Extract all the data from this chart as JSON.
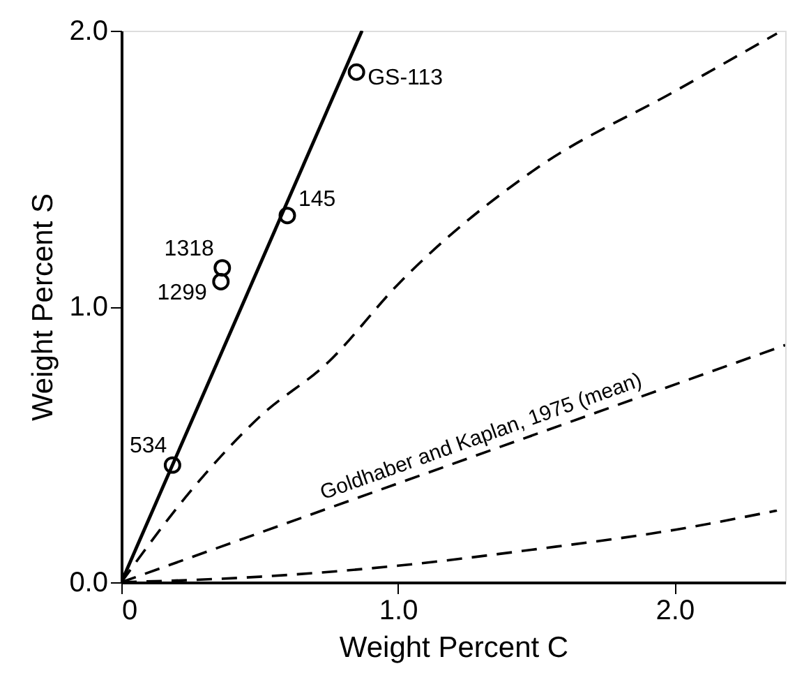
{
  "chart_data": {
    "type": "line",
    "xlabel": "Weight Percent C",
    "ylabel": "Weight Percent S",
    "xlim": [
      0,
      2.4
    ],
    "ylim": [
      0,
      2.0
    ],
    "xticks": [
      {
        "value": 0,
        "label": "0"
      },
      {
        "value": 1.0,
        "label": "1.0"
      },
      {
        "value": 2.0,
        "label": "2.0"
      }
    ],
    "yticks": [
      {
        "value": 0,
        "label": "0.0"
      },
      {
        "value": 1.0,
        "label": "1.0"
      },
      {
        "value": 2.0,
        "label": "2.0"
      }
    ],
    "grid": false,
    "legend": false,
    "series": [
      {
        "color": "#000000",
        "line_style": "solid",
        "x": [
          0,
          0.87
        ],
        "values": [
          0,
          2.0
        ]
      },
      {
        "color": "#000000",
        "line_style": "dashed",
        "x": [
          0,
          0.25,
          0.5,
          0.75,
          1.0,
          1.5,
          2.0,
          2.37
        ],
        "values": [
          0,
          0.33,
          0.6,
          0.8,
          1.08,
          1.5,
          1.78,
          1.99
        ]
      },
      {
        "name": "Goldhaber and Kaplan, 1975 (mean)",
        "color": "#000000",
        "line_style": "dashed",
        "x": [
          0,
          2.4
        ],
        "values": [
          0,
          0.86
        ]
      },
      {
        "color": "#000000",
        "line_style": "dashed",
        "x": [
          0,
          0.5,
          1.0,
          1.5,
          2.0,
          2.37
        ],
        "values": [
          0,
          0.02,
          0.06,
          0.12,
          0.19,
          0.26
        ]
      },
      {
        "type": "scatter",
        "color": "#000000",
        "marker": "circle",
        "x": [
          0.185,
          0.36,
          0.365,
          0.6,
          0.85
        ],
        "values": [
          0.425,
          1.09,
          1.14,
          1.33,
          1.85
        ]
      }
    ],
    "annotations": [
      {
        "text": "534",
        "x": 0.185,
        "y": 0.425
      },
      {
        "text": "1299",
        "x": 0.36,
        "y": 1.09
      },
      {
        "text": "1318",
        "x": 0.365,
        "y": 1.14
      },
      {
        "text": "145",
        "x": 0.6,
        "y": 1.33
      },
      {
        "text": "GS-113",
        "x": 0.85,
        "y": 1.85
      }
    ]
  }
}
